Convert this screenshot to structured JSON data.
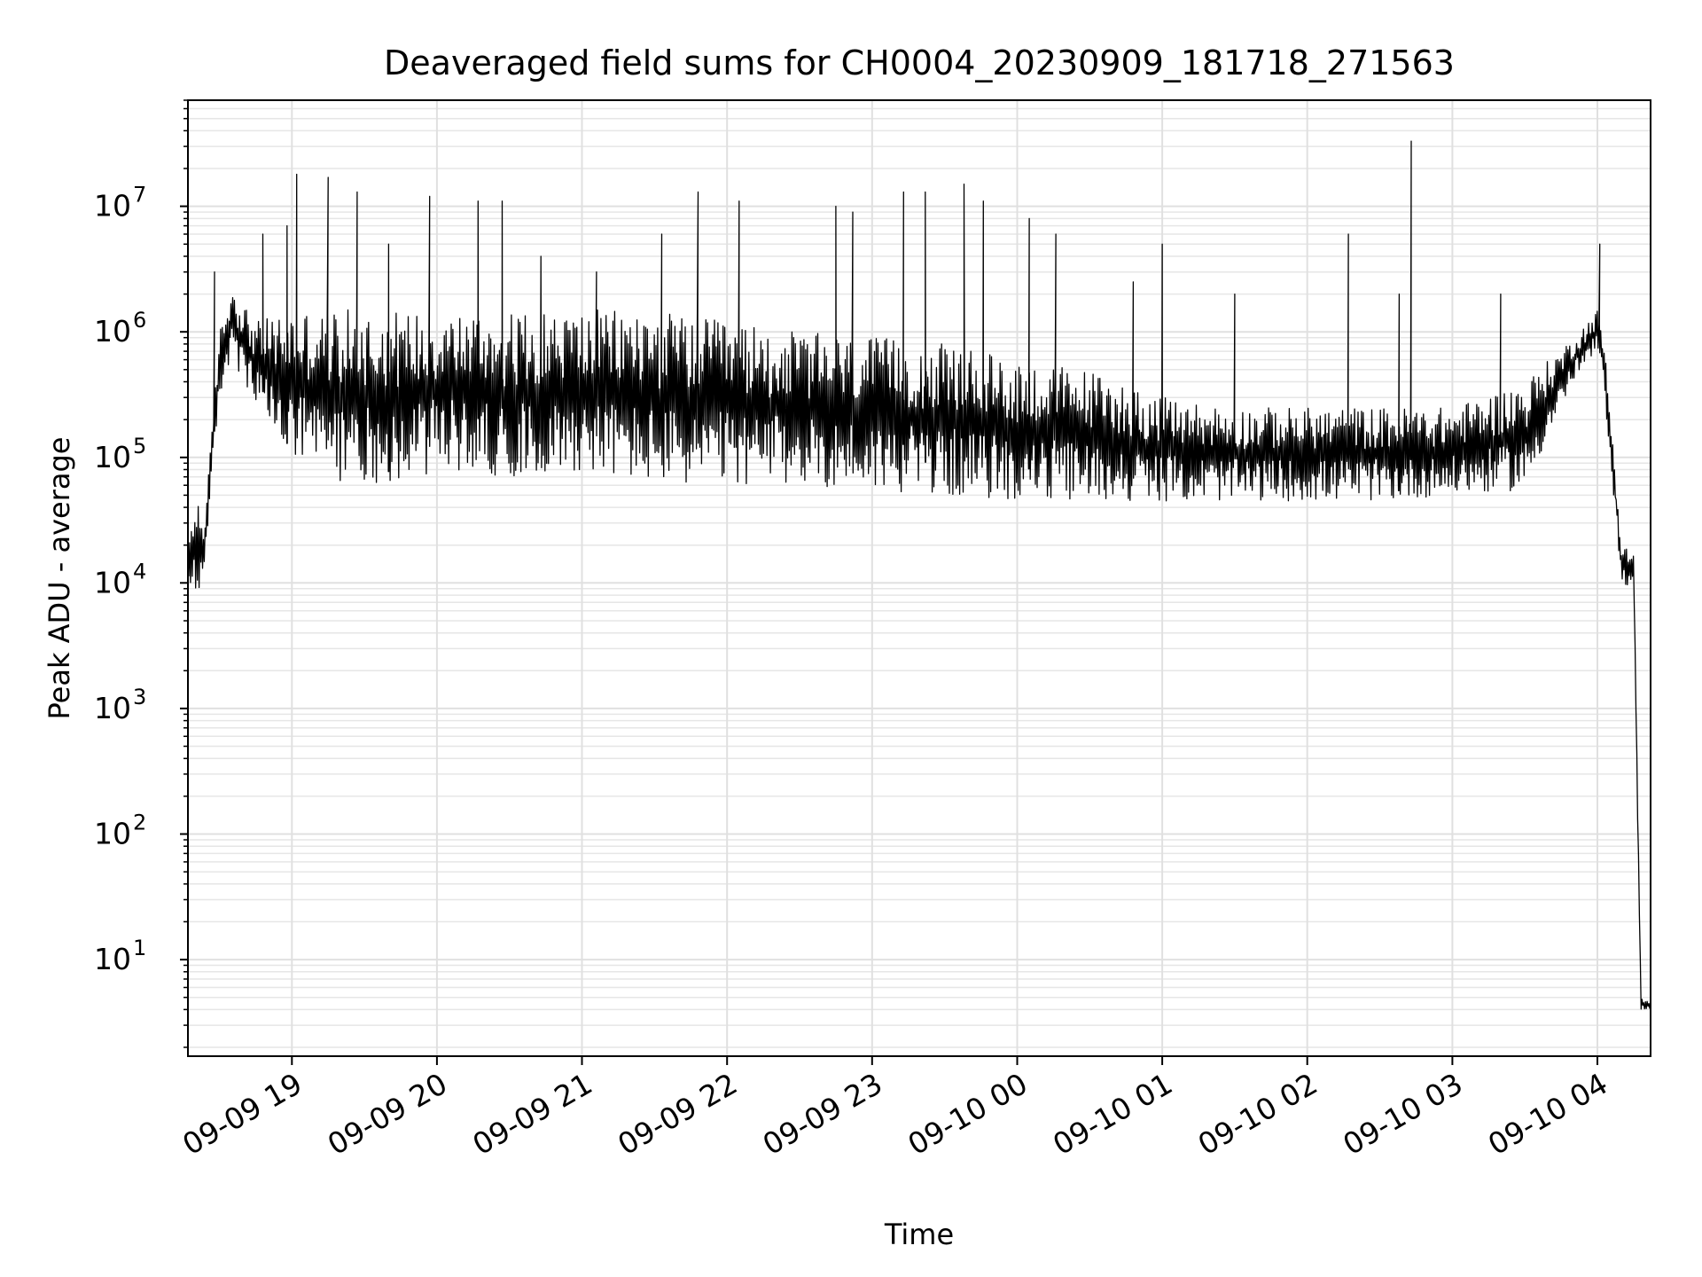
{
  "chart_data": {
    "type": "line",
    "title": "Deaveraged field sums for CH0004_20230909_181718_271563",
    "xlabel": "Time",
    "ylabel": "Peak ADU - average",
    "x_scale": "time",
    "y_scale": "log",
    "xlim": [
      "2023-09-09 18:17",
      "2023-09-10 04:22"
    ],
    "ylim": [
      1.7,
      70000000
    ],
    "grid": "on (major and minor)",
    "legend": "none",
    "x_ticks": [
      {
        "value": "2023-09-09 19:00",
        "label": "09-09 19"
      },
      {
        "value": "2023-09-09 20:00",
        "label": "09-09 20"
      },
      {
        "value": "2023-09-09 21:00",
        "label": "09-09 21"
      },
      {
        "value": "2023-09-09 22:00",
        "label": "09-09 22"
      },
      {
        "value": "2023-09-09 23:00",
        "label": "09-09 23"
      },
      {
        "value": "2023-09-10 00:00",
        "label": "09-10 00"
      },
      {
        "value": "2023-09-10 01:00",
        "label": "09-10 01"
      },
      {
        "value": "2023-09-10 02:00",
        "label": "09-10 02"
      },
      {
        "value": "2023-09-10 03:00",
        "label": "09-10 03"
      },
      {
        "value": "2023-09-10 04:00",
        "label": "09-10 04"
      }
    ],
    "y_ticks": [
      {
        "value": 10,
        "base": "10",
        "exp": "1"
      },
      {
        "value": 100,
        "base": "10",
        "exp": "2"
      },
      {
        "value": 1000,
        "base": "10",
        "exp": "3"
      },
      {
        "value": 10000,
        "base": "10",
        "exp": "4"
      },
      {
        "value": 100000,
        "base": "10",
        "exp": "5"
      },
      {
        "value": 1000000,
        "base": "10",
        "exp": "6"
      },
      {
        "value": 10000000,
        "base": "10",
        "exp": "7"
      }
    ],
    "series": [
      {
        "color": "#000000",
        "envelope": [
          {
            "t": "2023-09-09 18:17",
            "low": 10000,
            "high": 20000
          },
          {
            "t": "2023-09-09 18:20",
            "low": 5500,
            "high": 60000
          },
          {
            "t": "2023-09-09 18:24",
            "low": 15000,
            "high": 30000
          },
          {
            "t": "2023-09-09 18:30",
            "low": 300000,
            "high": 1000000
          },
          {
            "t": "2023-09-09 18:35",
            "low": 600000,
            "high": 2500000
          },
          {
            "t": "2023-09-09 18:45",
            "low": 250000,
            "high": 1200000
          },
          {
            "t": "2023-09-09 19:00",
            "low": 90000,
            "high": 1500000
          },
          {
            "t": "2023-09-09 19:20",
            "low": 65000,
            "high": 1500000
          },
          {
            "t": "2023-09-09 19:45",
            "low": 60000,
            "high": 1500000
          },
          {
            "t": "2023-09-09 20:00",
            "low": 80000,
            "high": 1500000
          },
          {
            "t": "2023-09-09 20:30",
            "low": 70000,
            "high": 1400000
          },
          {
            "t": "2023-09-09 21:00",
            "low": 80000,
            "high": 1500000
          },
          {
            "t": "2023-09-09 21:30",
            "low": 60000,
            "high": 1500000
          },
          {
            "t": "2023-09-09 22:00",
            "low": 60000,
            "high": 1200000
          },
          {
            "t": "2023-09-09 22:30",
            "low": 60000,
            "high": 1000000
          },
          {
            "t": "2023-09-09 23:00",
            "low": 55000,
            "high": 900000
          },
          {
            "t": "2023-09-09 23:30",
            "low": 50000,
            "high": 800000
          },
          {
            "t": "2023-09-10 00:00",
            "low": 45000,
            "high": 600000
          },
          {
            "t": "2023-09-10 00:30",
            "low": 45000,
            "high": 500000
          },
          {
            "t": "2023-09-10 01:00",
            "low": 45000,
            "high": 300000
          },
          {
            "t": "2023-09-10 01:30",
            "low": 45000,
            "high": 250000
          },
          {
            "t": "2023-09-10 02:00",
            "low": 45000,
            "high": 250000
          },
          {
            "t": "2023-09-10 02:30",
            "low": 45000,
            "high": 250000
          },
          {
            "t": "2023-09-10 03:00",
            "low": 50000,
            "high": 250000
          },
          {
            "t": "2023-09-10 03:30",
            "low": 55000,
            "high": 400000
          },
          {
            "t": "2023-09-10 03:50",
            "low": 400000,
            "high": 900000
          },
          {
            "t": "2023-09-10 04:00",
            "low": 700000,
            "high": 1500000
          },
          {
            "t": "2023-09-10 04:03",
            "low": 300000,
            "high": 800000
          },
          {
            "t": "2023-09-10 04:10",
            "low": 10000,
            "high": 20000
          },
          {
            "t": "2023-09-10 04:15",
            "low": 9000,
            "high": 18000
          },
          {
            "t": "2023-09-10 04:18",
            "low": 4,
            "high": 5
          },
          {
            "t": "2023-09-10 04:22",
            "low": 4,
            "high": 4.5
          }
        ],
        "spikes": [
          {
            "t": "2023-09-09 18:28",
            "value": 3000000
          },
          {
            "t": "2023-09-09 18:48",
            "value": 6000000
          },
          {
            "t": "2023-09-09 18:58",
            "value": 7000000
          },
          {
            "t": "2023-09-09 19:02",
            "value": 18000000
          },
          {
            "t": "2023-09-09 19:15",
            "value": 17000000
          },
          {
            "t": "2023-09-09 19:27",
            "value": 13000000
          },
          {
            "t": "2023-09-09 19:40",
            "value": 5000000
          },
          {
            "t": "2023-09-09 19:57",
            "value": 12000000
          },
          {
            "t": "2023-09-09 20:17",
            "value": 11000000
          },
          {
            "t": "2023-09-09 20:27",
            "value": 11000000
          },
          {
            "t": "2023-09-09 20:43",
            "value": 4000000
          },
          {
            "t": "2023-09-09 21:06",
            "value": 3000000
          },
          {
            "t": "2023-09-09 21:33",
            "value": 6000000
          },
          {
            "t": "2023-09-09 21:48",
            "value": 13000000
          },
          {
            "t": "2023-09-09 22:05",
            "value": 11000000
          },
          {
            "t": "2023-09-09 22:45",
            "value": 10000000
          },
          {
            "t": "2023-09-09 22:52",
            "value": 9000000
          },
          {
            "t": "2023-09-09 23:13",
            "value": 13000000
          },
          {
            "t": "2023-09-09 23:22",
            "value": 13000000
          },
          {
            "t": "2023-09-09 23:38",
            "value": 15000000
          },
          {
            "t": "2023-09-09 23:46",
            "value": 11000000
          },
          {
            "t": "2023-09-10 00:05",
            "value": 8000000
          },
          {
            "t": "2023-09-10 00:16",
            "value": 6000000
          },
          {
            "t": "2023-09-10 00:48",
            "value": 2500000
          },
          {
            "t": "2023-09-10 01:00",
            "value": 5000000
          },
          {
            "t": "2023-09-10 01:30",
            "value": 2000000
          },
          {
            "t": "2023-09-10 02:17",
            "value": 6000000
          },
          {
            "t": "2023-09-10 02:38",
            "value": 2000000
          },
          {
            "t": "2023-09-10 02:43",
            "value": 33000000
          },
          {
            "t": "2023-09-10 03:20",
            "value": 2000000
          },
          {
            "t": "2023-09-10 04:01",
            "value": 5000000
          }
        ]
      }
    ]
  }
}
